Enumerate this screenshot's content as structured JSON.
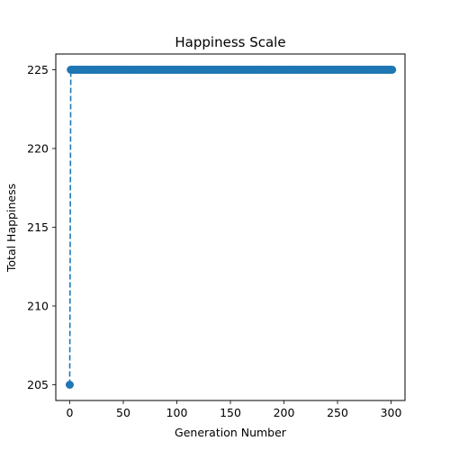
{
  "chart_data": {
    "type": "line",
    "title": "Happiness Scale",
    "xlabel": "Generation Number",
    "ylabel": "Total Happiness",
    "xlim": [
      -13,
      313
    ],
    "ylim": [
      204.0,
      226.0
    ],
    "x_ticks": [
      0,
      50,
      100,
      150,
      200,
      250,
      300
    ],
    "y_ticks": [
      205,
      210,
      215,
      220,
      225
    ],
    "grid": false,
    "legend": "none",
    "series": [
      {
        "color": "#1f77b4",
        "line_style": "dashed",
        "marker": "circle",
        "points": [
          {
            "x": 0,
            "y": 205
          },
          {
            "x": 1,
            "y": 225
          },
          {
            "x": "2-301 (one point per generation)",
            "y": 225
          }
        ],
        "x_start": 0,
        "x_end": 301,
        "values_by_x": {
          "0": 205,
          "1-301": 225
        }
      }
    ]
  }
}
